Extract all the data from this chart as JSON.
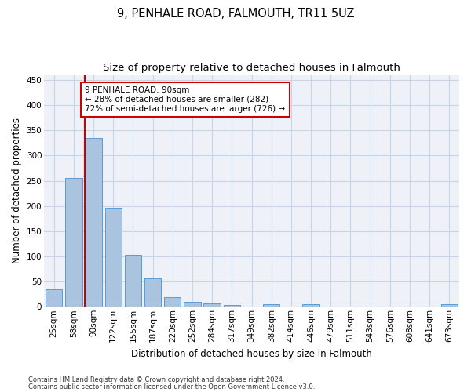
{
  "title": "9, PENHALE ROAD, FALMOUTH, TR11 5UZ",
  "subtitle": "Size of property relative to detached houses in Falmouth",
  "xlabel": "Distribution of detached houses by size in Falmouth",
  "ylabel": "Number of detached properties",
  "bar_labels": [
    "25sqm",
    "58sqm",
    "90sqm",
    "122sqm",
    "155sqm",
    "187sqm",
    "220sqm",
    "252sqm",
    "284sqm",
    "317sqm",
    "349sqm",
    "382sqm",
    "414sqm",
    "446sqm",
    "479sqm",
    "511sqm",
    "543sqm",
    "576sqm",
    "608sqm",
    "641sqm",
    "673sqm"
  ],
  "bar_values": [
    35,
    255,
    335,
    197,
    103,
    57,
    19,
    10,
    6,
    3,
    0,
    5,
    0,
    5,
    0,
    0,
    0,
    0,
    0,
    0,
    5
  ],
  "bar_color": "#aac4e0",
  "bar_edgecolor": "#5b9bd5",
  "marker_index": 2,
  "marker_color": "#cc0000",
  "ylim": [
    0,
    460
  ],
  "yticks": [
    0,
    50,
    100,
    150,
    200,
    250,
    300,
    350,
    400,
    450
  ],
  "annotation_lines": [
    "9 PENHALE ROAD: 90sqm",
    "← 28% of detached houses are smaller (282)",
    "72% of semi-detached houses are larger (726) →"
  ],
  "annotation_box_color": "#ffffff",
  "annotation_box_edgecolor": "#cc0000",
  "footnote1": "Contains HM Land Registry data © Crown copyright and database right 2024.",
  "footnote2": "Contains public sector information licensed under the Open Government Licence v3.0.",
  "background_color": "#eef2f8",
  "grid_color": "#c8d4e8",
  "title_fontsize": 10.5,
  "subtitle_fontsize": 9.5,
  "tick_fontsize": 7.5,
  "ylabel_fontsize": 8.5,
  "xlabel_fontsize": 8.5,
  "figsize": [
    6.0,
    5.0
  ],
  "dpi": 100
}
